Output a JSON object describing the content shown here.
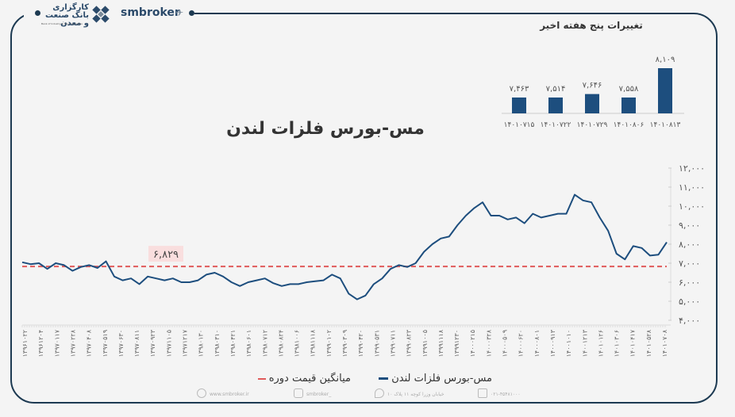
{
  "header": {
    "bank_logo_text": "کارگزاری بانک صنعت و معدن",
    "bank_logo_sub": "Bank of Industry & Mine Securities",
    "brand": "smbroker"
  },
  "weekly": {
    "title": "تغییرات پنج هفته اخیر"
  },
  "main": {
    "title": "مس-بورس فلزات لندن",
    "average_label": "۶,۸۲۹"
  },
  "legend": {
    "series_label": "مس-بورس فلزات لندن",
    "average_label": "میانگین قیمت دوره"
  },
  "footer": {
    "website": "www.smbroker.ir",
    "instagram": "smbroker_",
    "address": "خیابان وزرا کوچه ۱۱ پلاک ۱۰",
    "phone": "۰۲۱-۴۵۴۸۱۰۰۰"
  },
  "colors": {
    "series": "#1d4e7e",
    "average": "#e05a5a",
    "bar": "#1d4e7e",
    "frame": "#1d3a52"
  },
  "chart_data": [
    {
      "type": "bar",
      "title": "تغییرات پنج هفته اخیر",
      "categories": [
        "۱۴۰۱۰۷۱۵",
        "۱۴۰۱۰۷۲۲",
        "۱۴۰۱۰۷۲۹",
        "۱۴۰۱۰۸۰۶",
        "۱۴۰۱۰۸۱۳"
      ],
      "value_labels": [
        "۷,۴۶۳",
        "۷,۵۱۴",
        "۷,۶۴۶",
        "۷,۵۵۸",
        "۸,۱۰۹"
      ],
      "values": [
        7463,
        7514,
        7646,
        7558,
        8109
      ]
    },
    {
      "type": "line",
      "title": "مس-بورس فلزات لندن",
      "xlabel": "",
      "ylabel": "",
      "ylim": [
        4000,
        12000
      ],
      "yticks": [
        "۱۲,۰۰۰",
        "۱۱,۰۰۰",
        "۱۰,۰۰۰",
        "۹,۰۰۰",
        "۸,۰۰۰",
        "۷,۰۰۰",
        "۶,۰۰۰",
        "۵,۰۰۰",
        "۴,۰۰۰"
      ],
      "ytick_values": [
        12000,
        11000,
        10000,
        9000,
        8000,
        7000,
        6000,
        5000,
        4000
      ],
      "xticks": [
        "۱۳۹۶۱۰۲۲",
        "۱۳۹۶۱۲۰۴",
        "۱۳۹۷۰۱۱۷",
        "۱۳۹۷۰۲۲۸",
        "۱۳۹۷۰۴۰۸",
        "۱۳۹۷۰۵۱۹",
        "۱۳۹۷۰۶۳۰",
        "۱۳۹۷۰۸۱۱",
        "۱۳۹۷۰۹۲۳",
        "۱۳۹۷۱۱۰۵",
        "۱۳۹۷۱۲۱۷",
        "۱۳۹۸۰۱۳۰",
        "۱۳۹۸۰۳۱۰",
        "۱۳۹۸۰۴۲۱",
        "۱۳۹۸۰۶۰۱",
        "۱۳۹۸۰۷۱۲",
        "۱۳۹۸۰۸۲۴",
        "۱۳۹۸۱۰۰۶",
        "۱۳۹۸۱۱۱۸",
        "۱۳۹۹۰۱۰۲",
        "۱۳۹۹۰۳۰۹",
        "۱۳۹۹۰۴۲۰",
        "۱۳۹۹۰۵۳۱",
        "۱۳۹۹۰۷۱۱",
        "۱۳۹۹۰۸۲۳",
        "۱۳۹۹۱۰۰۵",
        "۱۳۹۹۱۱۱۸",
        "۱۳۹۹۱۲۳۰",
        "۱۴۰۰۰۲۱۵",
        "۱۴۰۰۰۳۲۸",
        "۱۴۰۰۰۵۰۹",
        "۱۴۰۰۰۶۲۰",
        "۱۴۰۰۰۸۰۱",
        "۱۴۰۰۰۹۱۳",
        "۱۴۰۰۱۰۱۰",
        "۱۴۰۰۱۲۱۳",
        "۱۴۰۱۰۱۲۶",
        "۱۴۰۱۰۳۰۶",
        "۱۴۰۱۰۴۱۷",
        "۱۴۰۱۰۵۲۸",
        "۱۴۰۱۰۷۰۸"
      ],
      "average": 6829,
      "series": [
        {
          "name": "مس-بورس فلزات لندن",
          "values": [
            7050,
            6950,
            7000,
            6700,
            7000,
            6900,
            6600,
            6800,
            6900,
            6750,
            7100,
            6300,
            6100,
            6200,
            5900,
            6300,
            6200,
            6100,
            6200,
            6000,
            6000,
            6100,
            6400,
            6500,
            6300,
            6000,
            5800,
            6000,
            6100,
            6200,
            5950,
            5800,
            5900,
            5900,
            6000,
            6050,
            6100,
            6400,
            6200,
            5400,
            5100,
            5300,
            5900,
            6200,
            6700,
            6900,
            6800,
            7000,
            7600,
            8000,
            8300,
            8400,
            9000,
            9500,
            9900,
            10200,
            9500,
            9500,
            9300,
            9400,
            9100,
            9600,
            9400,
            9500,
            9600,
            9600,
            10600,
            10300,
            10200,
            9400,
            8700,
            7500,
            7200,
            7900,
            7800,
            7400,
            7450,
            8100
          ]
        }
      ],
      "legend_position": "bottom",
      "grid": false
    }
  ]
}
